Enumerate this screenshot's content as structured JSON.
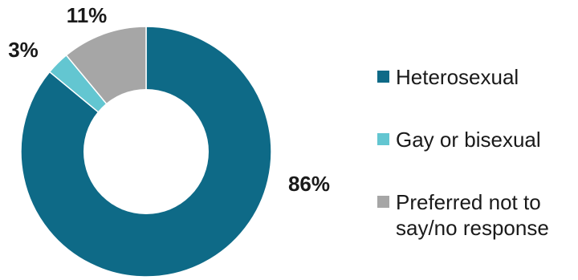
{
  "chart_data": {
    "type": "pie",
    "donut": true,
    "categories": [
      "Heterosexual",
      "Gay or bisexual",
      "Preferred not to say/no response"
    ],
    "values": [
      86,
      3,
      11
    ],
    "value_labels": [
      "86%",
      "3%",
      "11%"
    ],
    "colors": [
      "#0e6a87",
      "#63c6d1",
      "#a6a6a6"
    ],
    "legend_position": "right"
  },
  "legend": {
    "items": [
      {
        "label": "Heterosexual"
      },
      {
        "label": "Gay or bisexual"
      },
      {
        "label": "Preferred not to say/no response",
        "lines": [
          "Preferred not to",
          "say/no response"
        ]
      }
    ]
  }
}
